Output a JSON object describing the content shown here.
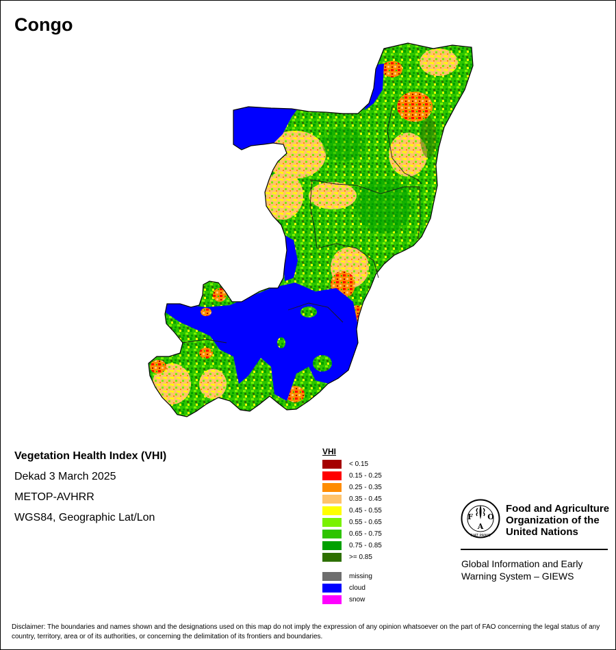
{
  "title": "Congo",
  "info": {
    "product": "Vegetation Health Index (VHI)",
    "period": "Dekad 3 March 2025",
    "sensor": "METOP-AVHRR",
    "projection": "WGS84, Geographic Lat/Lon"
  },
  "legend": {
    "title": "VHI",
    "classes": [
      {
        "label": "< 0.15",
        "color": "#a50000"
      },
      {
        "label": "0.15 - 0.25",
        "color": "#ff0000"
      },
      {
        "label": "0.25 - 0.35",
        "color": "#ff8c00"
      },
      {
        "label": "0.35 - 0.45",
        "color": "#ffc36b"
      },
      {
        "label": "0.45 - 0.55",
        "color": "#ffff00"
      },
      {
        "label": "0.55 - 0.65",
        "color": "#79f200"
      },
      {
        "label": "0.65 - 0.75",
        "color": "#2ec400"
      },
      {
        "label": "0.75 - 0.85",
        "color": "#00a000"
      },
      {
        "label": ">= 0.85",
        "color": "#2d7000"
      }
    ],
    "extras": [
      {
        "label": "missing",
        "color": "#6e6e6e"
      },
      {
        "label": "cloud",
        "color": "#0000ff"
      },
      {
        "label": "snow",
        "color": "#ff00ff"
      }
    ]
  },
  "organization": {
    "logo_text": "FAO",
    "logo_motto": "FIAT PANIS",
    "name_lines": [
      "Food and Agriculture",
      "Organization of the",
      "United Nations"
    ],
    "system_lines": [
      "Global Information and Early",
      "Warning System – GIEWS"
    ]
  },
  "disclaimer": "Disclaimer: The boundaries and names shown and the designations used on this map do not imply the expression of any opinion whatsoever on the part of FAO concerning the legal status of any country, territory, area or of its authorities, or concerning the delimitation of its frontiers and boundaries."
}
